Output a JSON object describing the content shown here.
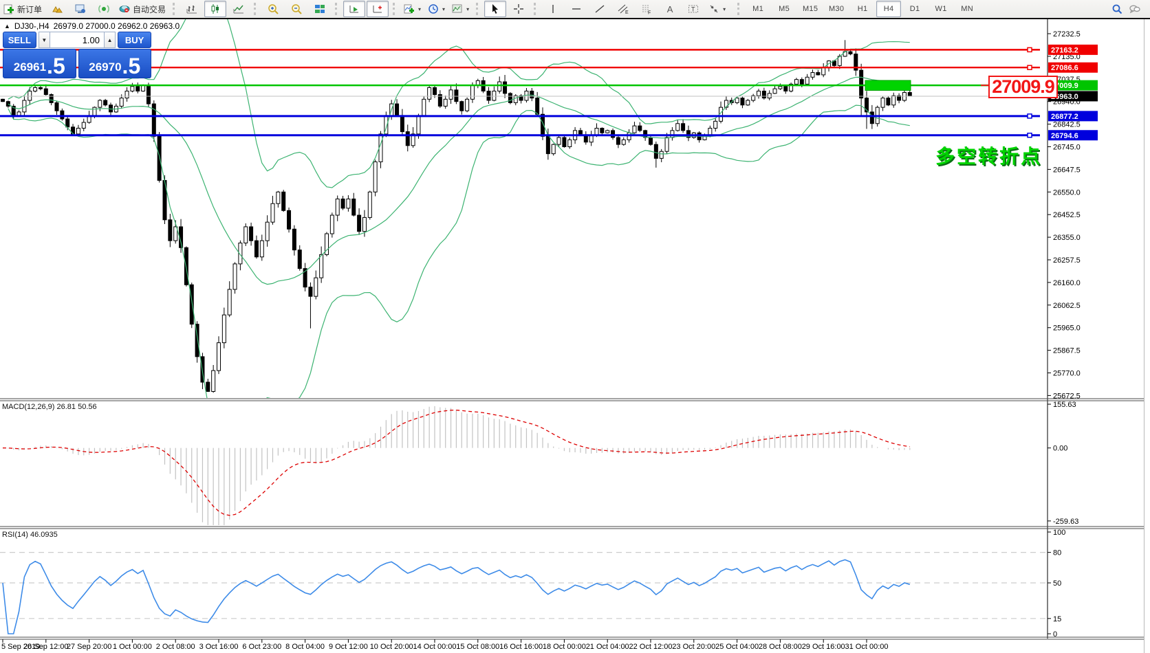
{
  "toolbar": {
    "new_order_label": "新订单",
    "autotrading_label": "自动交易",
    "caret": "▾",
    "letter_a": "A",
    "letter_t": "T",
    "timeframes": [
      "M1",
      "M5",
      "M15",
      "M30",
      "H1",
      "H4",
      "D1",
      "W1",
      "MN"
    ],
    "active_timeframe": "H4"
  },
  "chart_header": {
    "symbol_period": "DJ30-,H4",
    "ohlc_text": "26979.0 27000.0 26962.0 26963.0"
  },
  "order_panel": {
    "sell_label": "SELL",
    "buy_label": "BUY",
    "volume": "1.00",
    "step_down": "▼",
    "step_up": "▲",
    "sell_price_int": "26961",
    "sell_price_frac": ".5",
    "buy_price_int": "26970",
    "buy_price_frac": ".5"
  },
  "annotations": {
    "price_callout": "27009.9",
    "pivot_text": "多空转折点"
  },
  "indicators": {
    "macd": {
      "label": "MACD(12,26,9)",
      "value_macd": "26.81",
      "value_signal": "50.56",
      "scale": [
        {
          "v": 155.63,
          "t": "155.63"
        },
        {
          "v": 0,
          "t": "0.00"
        },
        {
          "v": -259.63,
          "t": "-259.63"
        }
      ]
    },
    "rsi": {
      "label": "RSI(14)",
      "value": "46.0935",
      "scale": [
        {
          "v": 100,
          "t": "100"
        },
        {
          "v": 80,
          "t": "80"
        },
        {
          "v": 50,
          "t": "50"
        },
        {
          "v": 15,
          "t": "15"
        },
        {
          "v": 0,
          "t": "0"
        }
      ],
      "levels": [
        80,
        50,
        15
      ]
    }
  },
  "chart_data": {
    "type": "candlestick",
    "symbol": "DJ30-",
    "period": "H4",
    "current_bar": {
      "open": 26979.0,
      "high": 27000.0,
      "low": 26962.0,
      "close": 26963.0
    },
    "bid": 26961.5,
    "ask": 26970.5,
    "ylim": [
      25672.5,
      27232.5
    ],
    "y_ticks": [
      27232.5,
      27135.0,
      27037.5,
      26940.0,
      26842.5,
      26745.0,
      26647.5,
      26550.0,
      26452.5,
      26355.0,
      26257.5,
      26160.0,
      26062.5,
      25965.0,
      25867.5,
      25770.0,
      25672.5
    ],
    "x_labels": [
      "5 Sep 2019",
      "26 Sep 12:00",
      "27 Sep 20:00",
      "1 Oct 00:00",
      "2 Oct 08:00",
      "3 Oct 16:00",
      "6 Oct 23:00",
      "8 Oct 04:00",
      "9 Oct 12:00",
      "10 Oct 20:00",
      "14 Oct 00:00",
      "15 Oct 08:00",
      "16 Oct 16:00",
      "18 Oct 00:00",
      "21 Oct 04:00",
      "22 Oct 12:00",
      "23 Oct 20:00",
      "25 Oct 04:00",
      "28 Oct 08:00",
      "29 Oct 16:00",
      "31 Oct 00:00"
    ],
    "open_first": 26950,
    "closes": [
      26940,
      26920,
      26880,
      26895,
      26945,
      26985,
      27000,
      26995,
      26970,
      26935,
      26900,
      26865,
      26830,
      26800,
      26825,
      26850,
      26880,
      26915,
      26945,
      26925,
      26895,
      26920,
      26955,
      26985,
      27005,
      26985,
      27010,
      26930,
      26790,
      26600,
      26430,
      26340,
      26400,
      26310,
      26150,
      25980,
      25840,
      25730,
      25690,
      25780,
      25900,
      26020,
      26130,
      26240,
      26330,
      26400,
      26340,
      26270,
      26340,
      26420,
      26500,
      26550,
      26470,
      26390,
      26300,
      26220,
      26140,
      26100,
      26180,
      26280,
      26370,
      26450,
      26520,
      26480,
      26520,
      26450,
      26380,
      26440,
      26550,
      26680,
      26800,
      26880,
      26930,
      26880,
      26810,
      26750,
      26800,
      26880,
      26950,
      27000,
      26970,
      26920,
      26950,
      26990,
      26940,
      26900,
      26950,
      27010,
      27030,
      26985,
      26945,
      26985,
      27025,
      26975,
      26935,
      26965,
      26945,
      26985,
      26955,
      26885,
      26790,
      26715,
      26755,
      26785,
      26745,
      26775,
      26815,
      26795,
      26765,
      26795,
      26825,
      26805,
      26815,
      26785,
      26755,
      26775,
      26805,
      26835,
      26815,
      26785,
      26755,
      26695,
      26725,
      26785,
      26815,
      26845,
      26815,
      26785,
      26805,
      26775,
      26795,
      26825,
      26855,
      26915,
      26945,
      26935,
      26955,
      26925,
      26945,
      26965,
      26985,
      26955,
      26975,
      26995,
      27005,
      26985,
      27015,
      27035,
      27015,
      27045,
      27065,
      27055,
      27085,
      27115,
      27095,
      27135,
      27155,
      27145,
      27075,
      26955,
      26895,
      26845,
      26915,
      26955,
      26925,
      26965,
      26945,
      26979,
      26963
    ],
    "extremes": {
      "37": {
        "low": 25700
      },
      "38": {
        "low": 25688
      },
      "57": {
        "low": 25962
      },
      "121": {
        "low": 26655
      },
      "156": {
        "high": 27205
      },
      "159": {
        "low": 26880
      },
      "160": {
        "low": 26822
      },
      "168": {
        "high": 27000,
        "low": 26962
      }
    },
    "hlines": [
      {
        "price": 27163.2,
        "label": "27163.2",
        "color": "#f00000",
        "width": 2.4
      },
      {
        "price": 27086.6,
        "label": "27086.6",
        "color": "#f00000",
        "width": 2.4
      },
      {
        "price": 27009.9,
        "label": "27009.9",
        "color": "#00c400",
        "width": 2.6
      },
      {
        "price": 26877.2,
        "label": "26877.2",
        "color": "#0000dd",
        "width": 3
      },
      {
        "price": 26794.6,
        "label": "26794.6",
        "color": "#0000dd",
        "width": 3
      }
    ],
    "current_price": {
      "value": 26963.0,
      "label": "26963.0",
      "line_color": "#c0c0c0",
      "badge_color": "#000000"
    },
    "highlight_rect": {
      "x": 1258,
      "w": 66,
      "price_top": 27031,
      "price_bottom": 26988,
      "fill": "#00d400",
      "stroke": "#00a000"
    },
    "bollinger": {
      "period": 20,
      "deviation": 2,
      "color": "#3CB371"
    },
    "macd_settings": {
      "fast": 12,
      "slow": 26,
      "signal": 9,
      "histogram_color": "#c2c2c2",
      "signal_color": "#dd0000"
    },
    "rsi_settings": {
      "period": 14,
      "color": "#3d8be8",
      "level_color": "#cccccc"
    }
  }
}
